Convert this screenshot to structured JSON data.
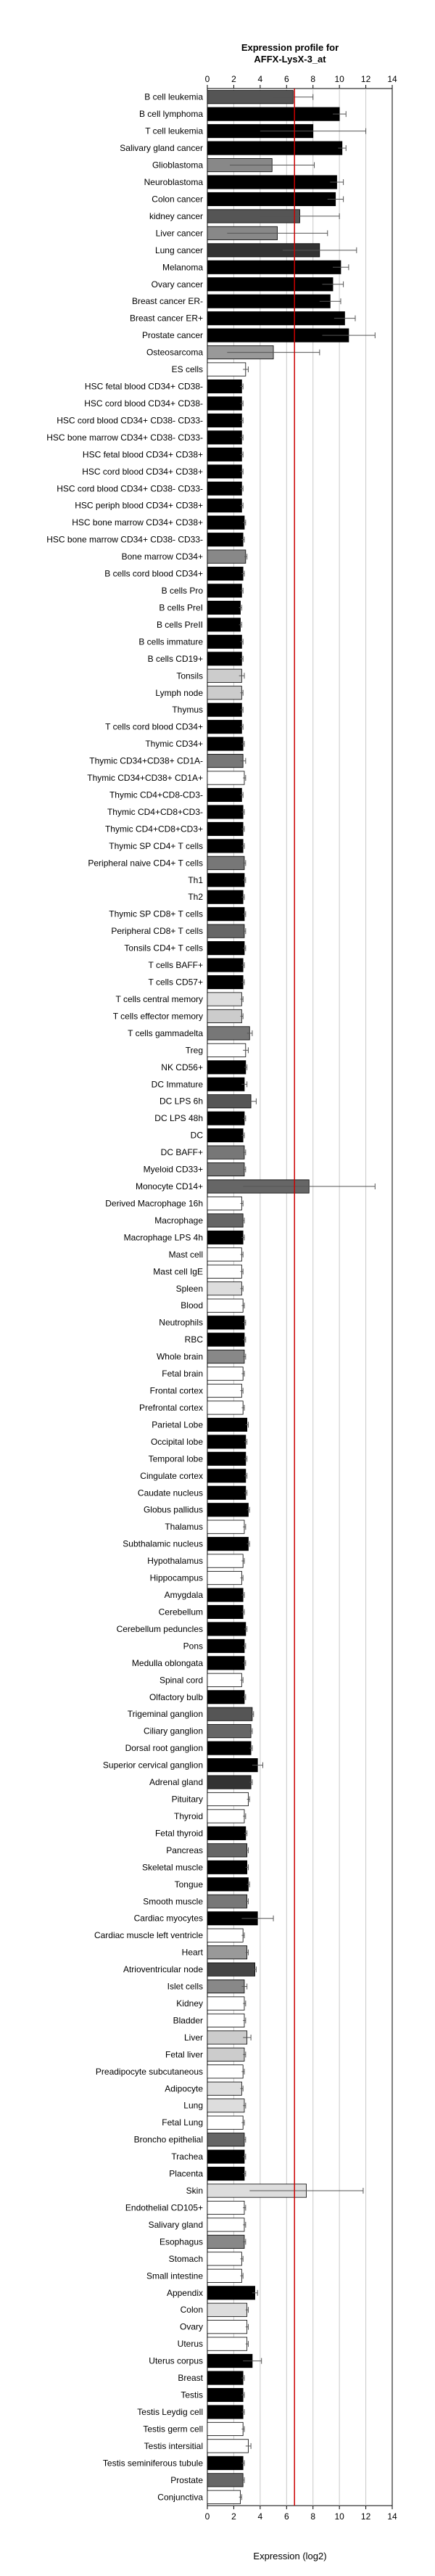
{
  "chart_data": {
    "type": "bar",
    "title": [
      "Expression profile for",
      "AFFX-LysX-3_at"
    ],
    "xlabel": "Expression (log2)",
    "xlim": [
      0,
      14
    ],
    "xticks": [
      0,
      2,
      4,
      6,
      8,
      10,
      12,
      14
    ],
    "grid": true,
    "reference_line": {
      "value": 6.6,
      "color": "#cc0000"
    },
    "categories": [
      "B cell leukemia",
      "B cell lymphoma",
      "T cell leukemia",
      "Salivary gland cancer",
      "Glioblastoma",
      "Neuroblastoma",
      "Colon cancer",
      "kidney cancer",
      "Liver cancer",
      "Lung cancer",
      "Melanoma",
      "Ovary cancer",
      "Breast cancer ER-",
      "Breast cancer ER+",
      "Prostate cancer",
      "Osteosarcoma",
      "ES cells",
      "HSC fetal blood CD34+ CD38-",
      "HSC cord blood CD34+ CD38-",
      "HSC cord blood CD34+ CD38- CD33-",
      "HSC bone marrow CD34+ CD38- CD33-",
      "HSC fetal blood CD34+ CD38+",
      "HSC cord blood CD34+ CD38+",
      "HSC cord blood CD34+ CD38- CD33-",
      "HSC periph blood CD34+ CD38+",
      "HSC bone marrow CD34+ CD38+",
      "HSC bone marrow CD34+ CD38- CD33-",
      "Bone marrow CD34+",
      "B cells cord blood CD34+",
      "B cells Pro",
      "B cells PreI",
      "B cells PreII",
      "B cells immature",
      "B cells CD19+",
      "Tonsils",
      "Lymph node",
      "Thymus",
      "T cells cord blood CD34+",
      "Thymic CD34+",
      "Thymic CD34+CD38+ CD1A-",
      "Thymic CD34+CD38+ CD1A+",
      "Thymic CD4+CD8-CD3-",
      "Thymic CD4+CD8+CD3-",
      "Thymic CD4+CD8+CD3+",
      "Thymic SP CD4+ T cells",
      "Peripheral naive CD4+ T cells",
      "Th1",
      "Th2",
      "Thymic SP CD8+ T cells",
      "Peripheral CD8+ T cells",
      "Tonsils CD4+ T cells",
      "T cells BAFF+",
      "T cells CD57+",
      "T cells central memory",
      "T cells effector memory",
      "T cells gammadelta",
      "Treg",
      "NK CD56+",
      "DC Immature",
      "DC LPS 6h",
      "DC LPS 48h",
      "DC",
      "DC BAFF+",
      "Myeloid CD33+",
      "Monocyte CD14+",
      "Derived Macrophage 16h",
      "Macrophage",
      "Macrophage LPS 4h",
      "Mast cell",
      "Mast cell IgE",
      "Spleen",
      "Blood",
      "Neutrophils",
      "RBC",
      "Whole brain",
      "Fetal brain",
      "Frontal cortex",
      "Prefrontal cortex",
      "Parietal Lobe",
      "Occipital lobe",
      "Temporal lobe",
      "Cingulate cortex",
      "Caudate nucleus",
      "Globus pallidus",
      "Thalamus",
      "Subthalamic nucleus",
      "Hypothalamus",
      "Hippocampus",
      "Amygdala",
      "Cerebellum",
      "Cerebellum peduncles",
      "Pons",
      "Medulla oblongata",
      "Spinal cord",
      "Olfactory bulb",
      "Trigeminal ganglion",
      "Ciliary ganglion",
      "Dorsal root ganglion",
      "Superior cervical ganglion",
      "Adrenal gland",
      "Pituitary",
      "Thyroid",
      "Fetal thyroid",
      "Pancreas",
      "Skeletal muscle",
      "Tongue",
      "Smooth muscle",
      "Cardiac myocytes",
      "Cardiac muscle left ventricle",
      "Heart",
      "Atrioventricular node",
      "Islet cells",
      "Kidney",
      "Bladder",
      "Liver",
      "Fetal liver",
      "Preadipocyte subcutaneous",
      "Adipocyte",
      "Lung",
      "Fetal Lung",
      "Broncho epithelial",
      "Trachea",
      "Placenta",
      "Skin",
      "Endothelial CD105+",
      "Salivary gland",
      "Esophagus",
      "Stomach",
      "Small intestine",
      "Appendix",
      "Colon",
      "Ovary",
      "Uterus",
      "Uterus corpus",
      "Breast",
      "Testis",
      "Testis Leydig cell",
      "Testis germ cell",
      "Testis intersitial",
      "Testis seminiferous tubule",
      "Prostate",
      "Conjunctiva"
    ],
    "values": [
      6.5,
      10.0,
      8.0,
      10.2,
      4.9,
      9.8,
      9.7,
      7.0,
      5.3,
      8.5,
      10.1,
      9.5,
      9.3,
      10.4,
      10.7,
      5.0,
      2.9,
      2.6,
      2.6,
      2.6,
      2.6,
      2.6,
      2.6,
      2.6,
      2.6,
      2.8,
      2.7,
      2.9,
      2.7,
      2.6,
      2.5,
      2.5,
      2.6,
      2.6,
      2.6,
      2.6,
      2.6,
      2.6,
      2.7,
      2.7,
      2.8,
      2.6,
      2.7,
      2.7,
      2.7,
      2.8,
      2.8,
      2.7,
      2.8,
      2.8,
      2.8,
      2.7,
      2.7,
      2.6,
      2.6,
      3.2,
      2.9,
      2.9,
      2.8,
      3.3,
      2.8,
      2.7,
      2.8,
      2.8,
      7.7,
      2.6,
      2.7,
      2.7,
      2.6,
      2.6,
      2.6,
      2.7,
      2.8,
      2.8,
      2.8,
      2.7,
      2.6,
      2.7,
      3.0,
      2.9,
      2.9,
      2.9,
      2.9,
      3.1,
      2.8,
      3.1,
      2.7,
      2.6,
      2.7,
      2.7,
      2.9,
      2.8,
      2.8,
      2.6,
      2.8,
      3.4,
      3.3,
      3.3,
      3.8,
      3.3,
      3.1,
      2.8,
      2.9,
      3.0,
      3.0,
      3.1,
      3.0,
      3.8,
      2.7,
      3.0,
      3.6,
      2.8,
      2.8,
      2.8,
      3.0,
      2.8,
      2.7,
      2.6,
      2.8,
      2.7,
      2.8,
      2.8,
      2.8,
      7.5,
      2.8,
      2.8,
      2.8,
      2.6,
      2.6,
      3.6,
      3.0,
      3.0,
      3.0,
      3.4,
      2.7,
      2.7,
      2.7,
      2.7,
      3.1,
      2.7,
      2.7,
      2.5
    ],
    "errors": [
      1.5,
      0.5,
      4.0,
      0.3,
      3.2,
      0.5,
      0.6,
      3.0,
      3.8,
      2.8,
      0.6,
      0.8,
      0.8,
      0.8,
      2.0,
      3.5,
      0.2,
      0.1,
      0.1,
      0.1,
      0.1,
      0.1,
      0.1,
      0.1,
      0.1,
      0.1,
      0.1,
      0.1,
      0.1,
      0.1,
      0.1,
      0.1,
      0.1,
      0.1,
      0.2,
      0.1,
      0.1,
      0.1,
      0.1,
      0.2,
      0.1,
      0.1,
      0.1,
      0.1,
      0.1,
      0.1,
      0.1,
      0.1,
      0.1,
      0.1,
      0.1,
      0.1,
      0.1,
      0.1,
      0.1,
      0.2,
      0.2,
      0.1,
      0.2,
      0.4,
      0.1,
      0.1,
      0.1,
      0.1,
      5.0,
      0.1,
      0.1,
      0.1,
      0.1,
      0.1,
      0.1,
      0.1,
      0.1,
      0.1,
      0.1,
      0.1,
      0.1,
      0.1,
      0.1,
      0.1,
      0.1,
      0.1,
      0.1,
      0.1,
      0.1,
      0.1,
      0.1,
      0.1,
      0.1,
      0.1,
      0.1,
      0.1,
      0.1,
      0.1,
      0.1,
      0.1,
      0.1,
      0.1,
      0.4,
      0.1,
      0.1,
      0.1,
      0.1,
      0.1,
      0.1,
      0.1,
      0.1,
      1.2,
      0.1,
      0.1,
      0.1,
      0.2,
      0.1,
      0.1,
      0.3,
      0.1,
      0.1,
      0.1,
      0.1,
      0.1,
      0.1,
      0.1,
      0.1,
      4.3,
      0.1,
      0.1,
      0.1,
      0.1,
      0.1,
      0.2,
      0.1,
      0.1,
      0.1,
      0.7,
      0.1,
      0.1,
      0.1,
      0.1,
      0.2,
      0.1,
      0.1,
      0.1
    ],
    "colors": [
      "#555555",
      "#000000",
      "#000000",
      "#000000",
      "#888888",
      "#000000",
      "#000000",
      "#555555",
      "#888888",
      "#333333",
      "#000000",
      "#000000",
      "#000000",
      "#000000",
      "#000000",
      "#999999",
      "#ffffff",
      "#000000",
      "#000000",
      "#000000",
      "#000000",
      "#000000",
      "#000000",
      "#000000",
      "#000000",
      "#000000",
      "#000000",
      "#888888",
      "#000000",
      "#000000",
      "#000000",
      "#000000",
      "#000000",
      "#000000",
      "#cccccc",
      "#cccccc",
      "#000000",
      "#000000",
      "#000000",
      "#777777",
      "#ffffff",
      "#000000",
      "#000000",
      "#000000",
      "#000000",
      "#777777",
      "#000000",
      "#000000",
      "#000000",
      "#666666",
      "#000000",
      "#000000",
      "#000000",
      "#dddddd",
      "#cccccc",
      "#777777",
      "#ffffff",
      "#000000",
      "#000000",
      "#555555",
      "#000000",
      "#000000",
      "#777777",
      "#777777",
      "#666666",
      "#ffffff",
      "#666666",
      "#000000",
      "#ffffff",
      "#ffffff",
      "#dddddd",
      "#ffffff",
      "#000000",
      "#000000",
      "#888888",
      "#ffffff",
      "#ffffff",
      "#ffffff",
      "#000000",
      "#000000",
      "#000000",
      "#000000",
      "#000000",
      "#000000",
      "#ffffff",
      "#000000",
      "#ffffff",
      "#ffffff",
      "#000000",
      "#000000",
      "#000000",
      "#000000",
      "#000000",
      "#ffffff",
      "#000000",
      "#555555",
      "#666666",
      "#000000",
      "#000000",
      "#333333",
      "#ffffff",
      "#ffffff",
      "#000000",
      "#666666",
      "#000000",
      "#000000",
      "#777777",
      "#000000",
      "#ffffff",
      "#999999",
      "#444444",
      "#888888",
      "#ffffff",
      "#ffffff",
      "#cccccc",
      "#cccccc",
      "#ffffff",
      "#dddddd",
      "#dddddd",
      "#ffffff",
      "#666666",
      "#000000",
      "#000000",
      "#dddddd",
      "#ffffff",
      "#ffffff",
      "#888888",
      "#ffffff",
      "#ffffff",
      "#000000",
      "#dddddd",
      "#ffffff",
      "#ffffff",
      "#000000",
      "#000000",
      "#000000",
      "#000000",
      "#ffffff",
      "#ffffff",
      "#000000",
      "#666666",
      "#ffffff"
    ]
  }
}
